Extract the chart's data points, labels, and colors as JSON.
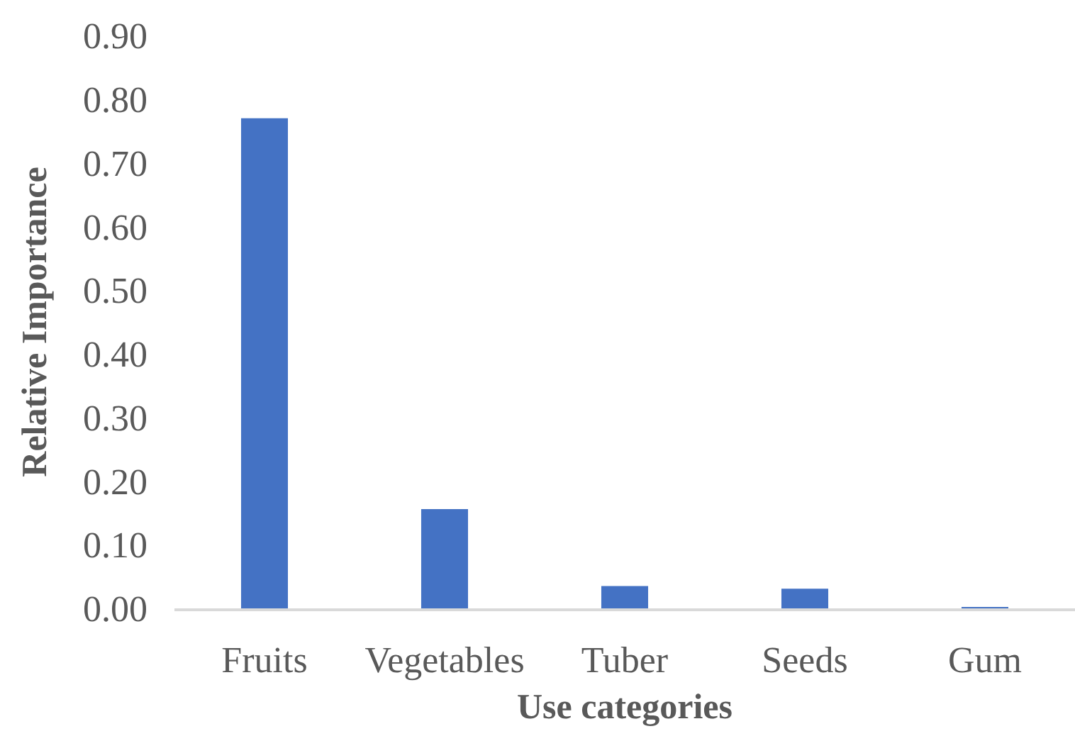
{
  "chart_data": {
    "type": "bar",
    "xlabel": "Use categories",
    "ylabel": "Relative Importance",
    "categories": [
      "Fruits",
      "Vegetables",
      "Tuber",
      "Seeds",
      "Gum"
    ],
    "values": [
      0.77,
      0.156,
      0.035,
      0.031,
      0.002
    ],
    "color": "#4472c4",
    "ylim": [
      0,
      0.9
    ],
    "yticks": [
      {
        "value": 0,
        "label": "0.00"
      },
      {
        "value": 0.1,
        "label": "0.10"
      },
      {
        "value": 0.2,
        "label": "0.20"
      },
      {
        "value": 0.3,
        "label": "0.30"
      },
      {
        "value": 0.4,
        "label": "0.40"
      },
      {
        "value": 0.5,
        "label": "0.50"
      },
      {
        "value": 0.6,
        "label": "0.60"
      },
      {
        "value": 0.7,
        "label": "0.70"
      },
      {
        "value": 0.8,
        "label": "0.80"
      },
      {
        "value": 0.9,
        "label": "0.90"
      }
    ],
    "grid": false,
    "legend": false
  }
}
